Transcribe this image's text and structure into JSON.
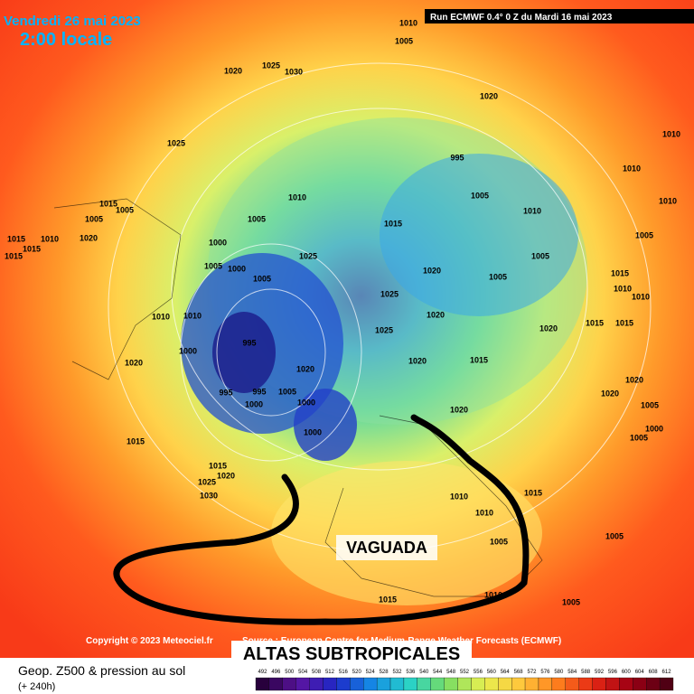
{
  "header": {
    "date": "Vendredi 26 mai 2023",
    "time": "2:00 locale",
    "run": "Run ECMWF 0.4° 0 Z du Mardi 16 mai 2023"
  },
  "map": {
    "isobar_labels": [
      1010,
      1005,
      1020,
      1025,
      1030,
      1020,
      1025,
      995,
      1005,
      1010,
      1005,
      1015,
      1010,
      1000,
      1025,
      1005,
      1000,
      1005,
      1020,
      1005,
      1005,
      1025,
      1020,
      1010,
      1010,
      995,
      1025,
      1020,
      1000,
      1020,
      1020,
      1020,
      1015,
      995,
      995,
      1005,
      1000,
      1000,
      1020,
      1000,
      1015,
      1015,
      1020,
      1025,
      1030,
      1010,
      1010,
      1015,
      1005,
      1010,
      1015,
      1005,
      1005,
      1010,
      1010,
      1010,
      1005,
      1015,
      1010,
      1010,
      1015,
      1015,
      1020,
      1020,
      1005,
      1000,
      1005,
      1015,
      1015,
      1015,
      1010,
      1020,
      1005,
      1005,
      1015
    ]
  },
  "annotations": {
    "trough": "VAGUADA",
    "highs": "ALTAS SUBTROPICALES"
  },
  "footer": {
    "copyright": "Copyright © 2023 Meteociel.fr",
    "source": "Source : European Centre for Medium-Range Weather Forecasts (ECMWF)",
    "field": "Geop. Z500 & pression au sol",
    "lead": "(+ 240h)"
  },
  "colorbar": {
    "ticks": [
      492,
      496,
      500,
      504,
      508,
      512,
      516,
      520,
      524,
      528,
      532,
      536,
      540,
      544,
      548,
      552,
      556,
      560,
      564,
      568,
      572,
      576,
      580,
      584,
      588,
      592,
      596,
      600,
      604,
      608,
      612
    ]
  }
}
